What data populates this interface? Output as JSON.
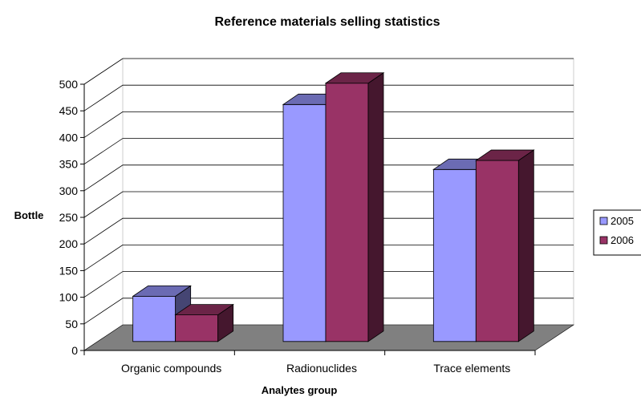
{
  "chart_data": {
    "type": "bar",
    "title": "Reference materials selling statistics",
    "xlabel": "Analytes group",
    "ylabel": "Bottle",
    "categories": [
      "Organic compounds",
      "Radionuclides",
      "Trace elements"
    ],
    "series": [
      {
        "name": "2005",
        "values": [
          85,
          445,
          323
        ]
      },
      {
        "name": "2006",
        "values": [
          50,
          485,
          340
        ]
      }
    ],
    "ylim": [
      0,
      500
    ],
    "yticks": [
      "0",
      "50",
      "100",
      "150",
      "200",
      "250",
      "300",
      "350",
      "400",
      "450",
      "500"
    ],
    "grid": true,
    "style": "3d",
    "legend": "right",
    "colors": {
      "2005": "#9999ff",
      "2006": "#993366",
      "floor": "#808080",
      "gridline": "#000000"
    }
  }
}
